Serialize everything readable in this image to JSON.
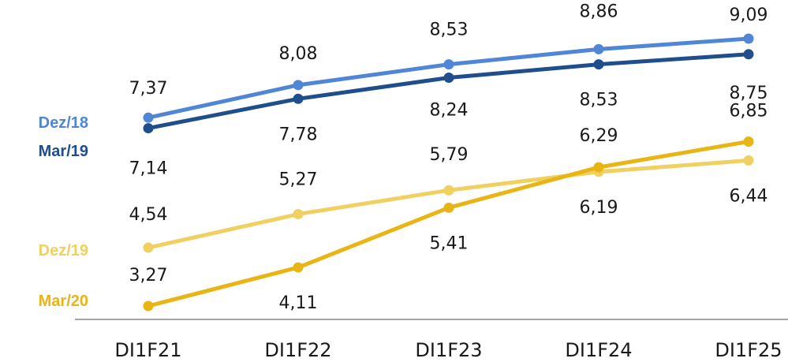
{
  "chart_data": {
    "type": "line",
    "categories": [
      "DI1F21",
      "DI1F22",
      "DI1F23",
      "DI1F24",
      "DI1F25"
    ],
    "series": [
      {
        "name": "Dez/18",
        "color": "#4f86d6",
        "values": [
          7.37,
          8.08,
          8.53,
          8.86,
          9.09
        ],
        "labels": [
          "7,37",
          "8,08",
          "8,53",
          "8,86",
          "9,09"
        ]
      },
      {
        "name": "Mar/19",
        "color": "#1f4e8c",
        "values": [
          7.14,
          7.78,
          8.24,
          8.53,
          8.75
        ],
        "labels": [
          "7,14",
          "7,78",
          "8,24",
          "8,53",
          "8,75"
        ]
      },
      {
        "name": "Dez/19",
        "color": "#f0d060",
        "values": [
          4.54,
          5.27,
          5.79,
          6.19,
          6.44
        ],
        "labels": [
          "4,54",
          "5,27",
          "5,79",
          "6,19",
          "6,44"
        ]
      },
      {
        "name": "Mar/20",
        "color": "#e8b514",
        "values": [
          3.27,
          4.11,
          5.41,
          6.29,
          6.85
        ],
        "labels": [
          "3,27",
          "4,11",
          "5,41",
          "6,29",
          "6,85"
        ]
      }
    ],
    "ylim": [
      3.27,
      9.09
    ],
    "grid": false,
    "legend": "left"
  }
}
